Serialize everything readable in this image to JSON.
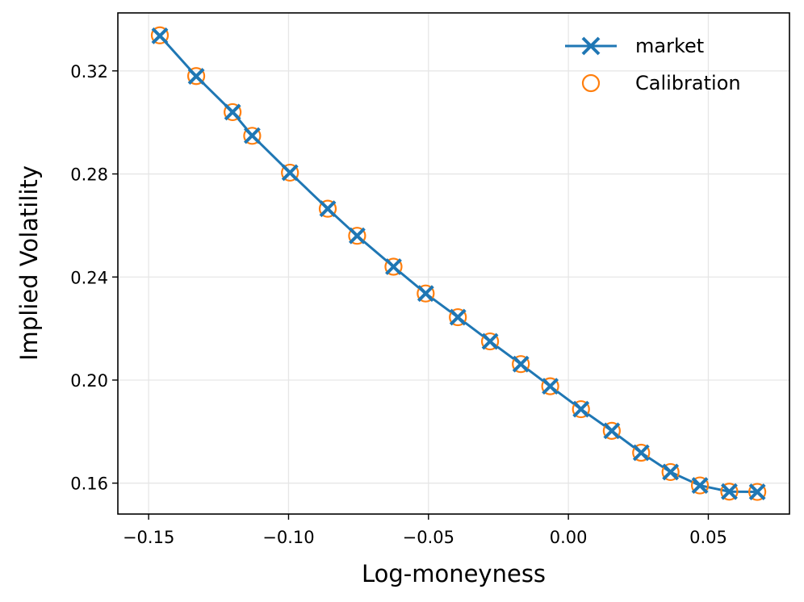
{
  "chart_data": {
    "type": "scatter",
    "xlabel": "Log-moneyness",
    "ylabel": "Implied Volatility",
    "xlim": [
      -0.161,
      0.079
    ],
    "ylim": [
      0.148,
      0.3425
    ],
    "xticks": [
      -0.15,
      -0.1,
      -0.05,
      0.0,
      0.05
    ],
    "xtick_labels": [
      "−0.15",
      "−0.10",
      "−0.05",
      "0.00",
      "0.05"
    ],
    "yticks": [
      0.16,
      0.2,
      0.24,
      0.28,
      0.32
    ],
    "ytick_labels": [
      "0.16",
      "0.20",
      "0.24",
      "0.28",
      "0.32"
    ],
    "grid": true,
    "legend_position": "top-right",
    "series": [
      {
        "name": "market",
        "style": "line-x-marker",
        "color": "#1f77b4",
        "x": [
          -0.146,
          -0.133,
          -0.12,
          -0.113,
          -0.0995,
          -0.086,
          -0.0755,
          -0.0625,
          -0.051,
          -0.0395,
          -0.028,
          -0.017,
          -0.0065,
          0.0045,
          0.0155,
          0.026,
          0.0365,
          0.047,
          0.0575,
          0.0675
        ],
        "y": [
          0.3336,
          0.3179,
          0.304,
          0.2949,
          0.2805,
          0.2665,
          0.256,
          0.244,
          0.2336,
          0.2244,
          0.215,
          0.2062,
          0.1976,
          0.1887,
          0.1803,
          0.1718,
          0.1643,
          0.1591,
          0.1567,
          0.1566
        ]
      },
      {
        "name": "Calibration",
        "style": "open-circle",
        "color": "#ff7f0e",
        "x": [
          -0.146,
          -0.133,
          -0.12,
          -0.113,
          -0.0995,
          -0.086,
          -0.0755,
          -0.0625,
          -0.051,
          -0.0395,
          -0.028,
          -0.017,
          -0.0065,
          0.0045,
          0.0155,
          0.026,
          0.0365,
          0.047,
          0.0575,
          0.0675
        ],
        "y": [
          0.3338,
          0.318,
          0.304,
          0.2948,
          0.2805,
          0.2665,
          0.256,
          0.244,
          0.2336,
          0.2244,
          0.215,
          0.2062,
          0.1976,
          0.1887,
          0.1803,
          0.1718,
          0.1643,
          0.1591,
          0.1567,
          0.1566
        ]
      }
    ]
  }
}
